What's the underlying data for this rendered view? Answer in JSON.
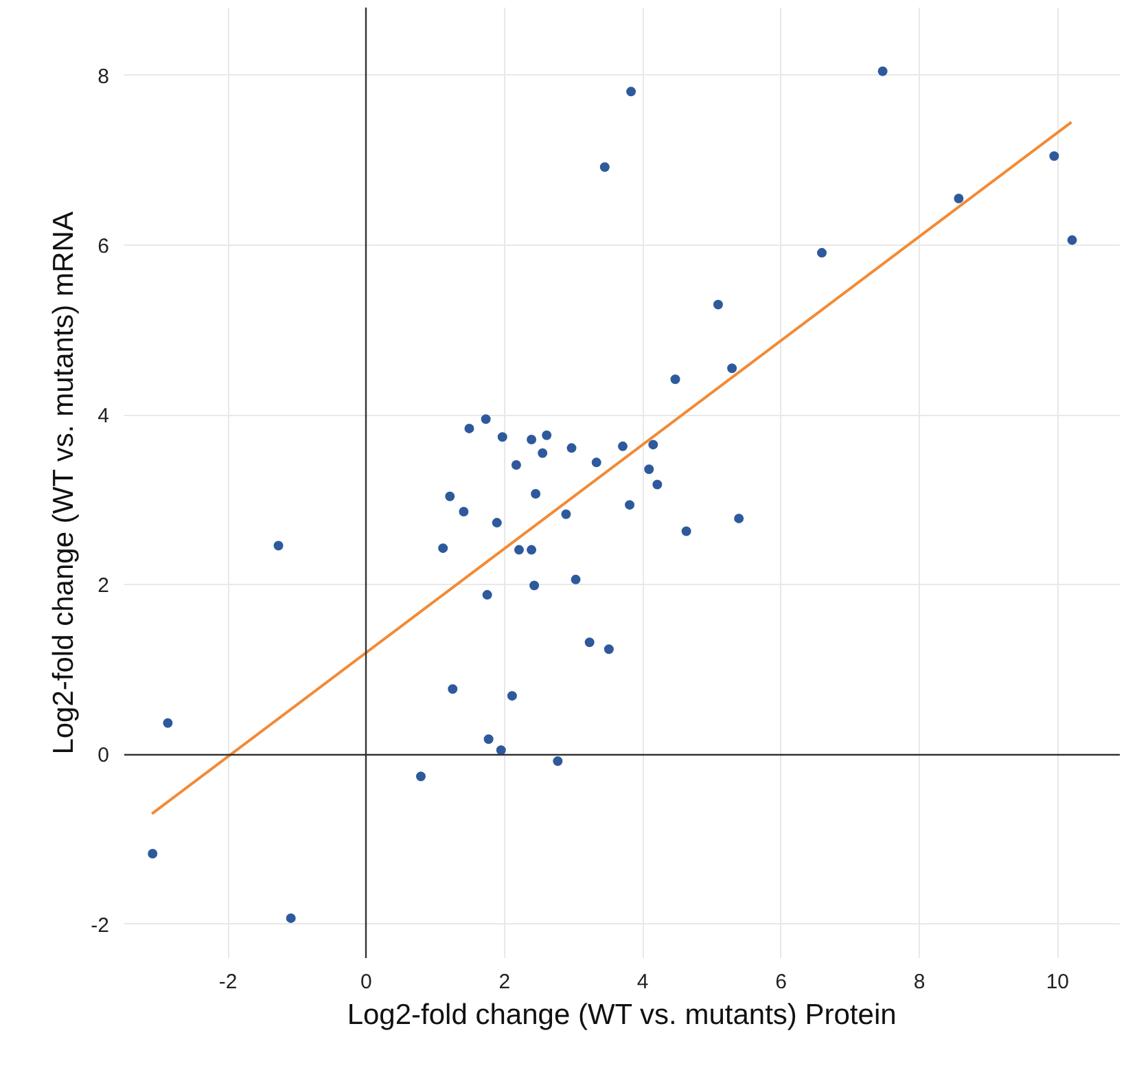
{
  "chart_data": {
    "type": "scatter",
    "xlabel": "Log2-fold change (WT vs. mutants) Protein",
    "ylabel": "Log2-fold change (WT vs. mutants) mRNA",
    "xlim": [
      -3.5,
      10.9
    ],
    "ylim": [
      -2.4,
      8.8
    ],
    "xticks": [
      -2,
      0,
      2,
      4,
      6,
      8,
      10
    ],
    "yticks": [
      -2,
      0,
      2,
      4,
      6,
      8
    ],
    "grid": true,
    "series": [
      {
        "color": "#2e5a9c",
        "marker": "circle",
        "x": [
          -3.09,
          -2.87,
          -1.27,
          -1.09,
          0.79,
          1.11,
          1.21,
          1.25,
          1.41,
          1.49,
          1.73,
          1.75,
          1.77,
          1.89,
          1.95,
          1.97,
          2.11,
          2.17,
          2.21,
          2.39,
          2.39,
          2.43,
          2.45,
          2.55,
          2.61,
          2.77,
          2.89,
          2.97,
          3.03,
          3.23,
          3.33,
          3.45,
          3.51,
          3.71,
          3.81,
          3.83,
          4.09,
          4.15,
          4.21,
          4.47,
          4.63,
          5.09,
          5.29,
          5.39,
          6.59,
          7.47,
          8.57,
          9.95,
          10.21
        ],
        "values": [
          -1.17,
          0.37,
          2.46,
          -1.93,
          -0.26,
          2.43,
          3.04,
          0.77,
          2.86,
          3.84,
          3.95,
          1.88,
          0.18,
          2.73,
          0.05,
          3.74,
          0.69,
          3.41,
          2.41,
          3.71,
          2.41,
          1.99,
          3.07,
          3.55,
          3.76,
          -0.08,
          2.83,
          3.61,
          2.06,
          1.32,
          3.44,
          6.92,
          1.24,
          3.63,
          2.94,
          7.81,
          3.36,
          3.65,
          3.18,
          4.42,
          2.63,
          5.3,
          4.55,
          2.78,
          5.91,
          8.05,
          6.55,
          7.05,
          6.06
        ]
      },
      {
        "type": "line",
        "color": "#f28a35",
        "marker": "none",
        "line_style": "solid",
        "x": [
          -3.1,
          10.2
        ],
        "values": [
          -0.7,
          7.45
        ]
      }
    ]
  }
}
